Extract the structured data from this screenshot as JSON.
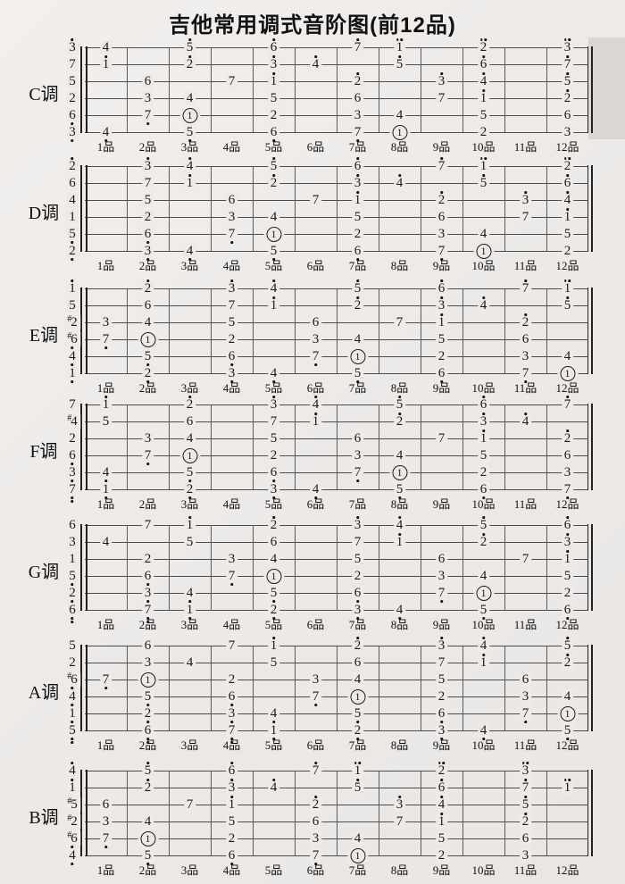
{
  "title": "吉他常用调式音阶图(前12品)",
  "fret_labels": [
    "1品",
    "2品",
    "3品",
    "4品",
    "5品",
    "6品",
    "7品",
    "8品",
    "9品",
    "10品",
    "11品",
    "12品"
  ],
  "chart_data": {
    "type": "table",
    "title": "吉他常用调式音阶图(前12品)",
    "fret_count": 12,
    "encoding": "jianpu scale degrees; fret:token per note; ' = dot above (octave up), . = dot below (octave down), # = sharp prefix, (1) = circled tonic; strings listed 1st (top) to 6th (bottom); open = note of open string at the nut",
    "keys": [
      {
        "key": "C调",
        "strings": [
          {
            "open": "3'",
            "notes": [
              "1:4",
              "3:5'",
              "5:6'",
              "7:7'",
              "8:1''",
              "10:2''",
              "12:3''"
            ]
          },
          {
            "open": "7",
            "notes": [
              "1:1'",
              "3:2'",
              "5:3'",
              "6:4'",
              "8:5'",
              "10:6'",
              "12:7'"
            ]
          },
          {
            "open": "5",
            "notes": [
              "2:6",
              "4:7",
              "5:1'",
              "7:2'",
              "9:3'",
              "10:4'",
              "12:5'"
            ]
          },
          {
            "open": "2",
            "notes": [
              "2:3",
              "3:4",
              "5:5",
              "7:6",
              "9:7",
              "10:1'",
              "12:2'"
            ]
          },
          {
            "open": "6.",
            "notes": [
              "2:7.",
              "3:(1)",
              "5:2",
              "7:3",
              "8:4",
              "10:5",
              "12:6"
            ]
          },
          {
            "open": "3.",
            "notes": [
              "1:4.",
              "3:5.",
              "5:6.",
              "7:7.",
              "8:(1)",
              "10:2",
              "12:3"
            ]
          }
        ]
      },
      {
        "key": "D调",
        "strings": [
          {
            "open": "2'",
            "notes": [
              "2:3'",
              "3:4'",
              "5:5'",
              "7:6'",
              "9:7'",
              "10:1''",
              "12:2''"
            ]
          },
          {
            "open": "6",
            "notes": [
              "2:7",
              "3:1'",
              "5:2'",
              "7:3'",
              "8:4'",
              "10:5'",
              "12:6'"
            ]
          },
          {
            "open": "4",
            "notes": [
              "2:5",
              "4:6",
              "6:7",
              "7:1'",
              "9:2'",
              "11:3'",
              "12:4'"
            ]
          },
          {
            "open": "1",
            "notes": [
              "2:2",
              "4:3",
              "5:4",
              "7:5",
              "9:6",
              "11:7",
              "12:1'"
            ]
          },
          {
            "open": "5.",
            "notes": [
              "2:6.",
              "4:7.",
              "5:(1)",
              "7:2",
              "9:3",
              "10:4",
              "12:5"
            ]
          },
          {
            "open": "2.",
            "notes": [
              "2:3.",
              "3:4.",
              "5:5.",
              "7:6.",
              "9:7.",
              "10:(1)",
              "12:2"
            ]
          }
        ]
      },
      {
        "key": "E调",
        "strings": [
          {
            "open": "1'",
            "notes": [
              "2:2'",
              "4:3'",
              "5:4'",
              "7:5'",
              "9:6'",
              "11:7'",
              "12:1''"
            ]
          },
          {
            "open": "5",
            "notes": [
              "2:6",
              "4:7",
              "5:1'",
              "7:2'",
              "9:3'",
              "10:4'",
              "12:5'"
            ]
          },
          {
            "open": "#2",
            "notes": [
              "1:3",
              "2:4",
              "4:5",
              "6:6",
              "8:7",
              "9:1'",
              "11:2'"
            ]
          },
          {
            "open": "#6.",
            "notes": [
              "1:7.",
              "2:(1)",
              "4:2",
              "6:3",
              "7:4",
              "9:5",
              "11:6"
            ]
          },
          {
            "open": "4.",
            "notes": [
              "2:5.",
              "4:6.",
              "6:7.",
              "7:(1)",
              "9:2",
              "11:3",
              "12:4"
            ]
          },
          {
            "open": "1.",
            "notes": [
              "2:2.",
              "4:3.",
              "5:4.",
              "7:5.",
              "9:6.",
              "11:7.",
              "12:(1)"
            ]
          }
        ]
      },
      {
        "key": "F调",
        "strings": [
          {
            "open": "7",
            "notes": [
              "1:1'",
              "3:2'",
              "5:3'",
              "6:4'",
              "8:5'",
              "10:6'",
              "12:7'"
            ]
          },
          {
            "open": "#4",
            "notes": [
              "1:5",
              "3:6",
              "5:7",
              "6:1'",
              "8:2'",
              "10:3'",
              "11:4'"
            ]
          },
          {
            "open": "2",
            "notes": [
              "2:3",
              "3:4",
              "5:5",
              "7:6",
              "9:7",
              "10:1'",
              "12:2'"
            ]
          },
          {
            "open": "6.",
            "notes": [
              "2:7.",
              "3:(1)",
              "5:2",
              "7:3",
              "8:4",
              "10:5",
              "12:6"
            ]
          },
          {
            "open": "3.",
            "notes": [
              "1:4.",
              "3:5.",
              "5:6.",
              "7:7.",
              "8:(1)",
              "10:2",
              "12:3"
            ]
          },
          {
            "open": "7..",
            "notes": [
              "1:1.",
              "3:2.",
              "5:3.",
              "6:4.",
              "8:5.",
              "10:6.",
              "12:7."
            ]
          }
        ]
      },
      {
        "key": "G调",
        "strings": [
          {
            "open": "6",
            "notes": [
              "2:7",
              "3:1'",
              "5:2'",
              "7:3'",
              "8:4'",
              "10:5'",
              "12:6'"
            ]
          },
          {
            "open": "3",
            "notes": [
              "1:4",
              "3:5",
              "5:6",
              "7:7",
              "8:1'",
              "10:2'",
              "12:3'"
            ]
          },
          {
            "open": "1",
            "notes": [
              "2:2",
              "4:3",
              "5:4",
              "7:5",
              "9:6",
              "11:7",
              "12:1'"
            ]
          },
          {
            "open": "5.",
            "notes": [
              "2:6.",
              "4:7.",
              "5:(1)",
              "7:2",
              "9:3",
              "10:4",
              "12:5"
            ]
          },
          {
            "open": "2.",
            "notes": [
              "2:3.",
              "3:4.",
              "5:5.",
              "7:6.",
              "9:7.",
              "10:(1)",
              "12:2"
            ]
          },
          {
            "open": "6..",
            "notes": [
              "2:7..",
              "3:1.",
              "5:2.",
              "7:3.",
              "8:4.",
              "10:5.",
              "12:6."
            ]
          }
        ]
      },
      {
        "key": "A调",
        "strings": [
          {
            "open": "5",
            "notes": [
              "2:6",
              "4:7",
              "5:1'",
              "7:2'",
              "9:3'",
              "10:4'",
              "12:5'"
            ]
          },
          {
            "open": "2",
            "notes": [
              "2:3",
              "3:4",
              "5:5",
              "7:6",
              "9:7",
              "10:1'",
              "12:2'"
            ]
          },
          {
            "open": "#6.",
            "notes": [
              "1:7.",
              "2:(1)",
              "4:2",
              "6:3",
              "7:4",
              "9:5",
              "11:6"
            ]
          },
          {
            "open": "4.",
            "notes": [
              "2:5.",
              "4:6.",
              "6:7.",
              "7:(1)",
              "9:2",
              "11:3",
              "12:4"
            ]
          },
          {
            "open": "1.",
            "notes": [
              "2:2.",
              "4:3.",
              "5:4.",
              "7:5.",
              "9:6.",
              "11:7.",
              "12:(1)"
            ]
          },
          {
            "open": "5..",
            "notes": [
              "2:6..",
              "4:7..",
              "5:1.",
              "7:2.",
              "9:3.",
              "10:4.",
              "12:5."
            ]
          }
        ]
      },
      {
        "key": "B调",
        "strings": [
          {
            "open": "4'",
            "notes": [
              "2:5'",
              "4:6'",
              "6:7'",
              "7:1''",
              "9:2''",
              "11:3''"
            ]
          },
          {
            "open": "1'",
            "notes": [
              "2:2'",
              "4:3'",
              "5:4'",
              "7:5'",
              "9:6'",
              "11:7'",
              "12:1''"
            ]
          },
          {
            "open": "#5",
            "notes": [
              "1:6",
              "3:7",
              "4:1'",
              "6:2'",
              "8:3'",
              "9:4'",
              "11:5'"
            ]
          },
          {
            "open": "#2",
            "notes": [
              "1:3",
              "2:4",
              "4:5",
              "6:6",
              "8:7",
              "9:1'",
              "11:2'"
            ]
          },
          {
            "open": "#6.",
            "notes": [
              "1:7.",
              "2:(1)",
              "4:2",
              "6:3",
              "7:4",
              "9:5",
              "11:6"
            ]
          },
          {
            "open": "4.",
            "notes": [
              "2:5.",
              "4:6.",
              "6:7.",
              "7:(1)",
              "9:2",
              "11:3"
            ]
          }
        ]
      }
    ]
  }
}
